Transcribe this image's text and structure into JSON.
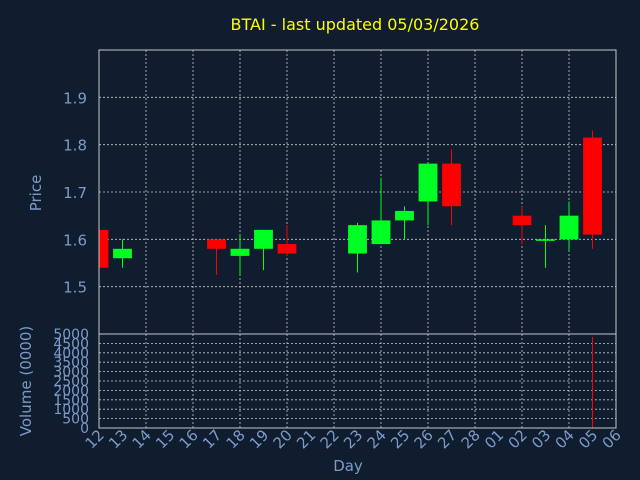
{
  "colors": {
    "background": "#0f1d2f",
    "title": "#ffff00",
    "axis_text": "#7b9bc9",
    "grid": "#c8c8c8",
    "frame": "#c8c8c8",
    "up": "#00ff22",
    "down": "#ff0000",
    "wick_up": "#00ff22",
    "wick_down": "#ff0000",
    "volume": "#ff0000"
  },
  "chart_data": {
    "type": "candlestick",
    "title": "BTAI - last updated 05/03/2026",
    "xlabel": "Day",
    "price_panel": {
      "ylabel": "Price",
      "ylim": [
        1.4,
        2.0
      ],
      "yticks": [
        "1.5",
        "1.6",
        "1.7",
        "1.8",
        "1.9"
      ],
      "ytick_values": [
        1.5,
        1.6,
        1.7,
        1.8,
        1.9
      ],
      "grid": true
    },
    "volume_panel": {
      "ylabel": "Volume (0000)",
      "ylim": [
        0,
        5000
      ],
      "yticks": [
        "0",
        "500",
        "1000",
        "1500",
        "2000",
        "2500",
        "3000",
        "3500",
        "4000",
        "4500",
        "5000"
      ],
      "ytick_values": [
        0,
        500,
        1000,
        1500,
        2000,
        2500,
        3000,
        3500,
        4000,
        4500,
        5000
      ],
      "grid": true
    },
    "x_ticks": [
      "12",
      "13",
      "14",
      "15",
      "16",
      "17",
      "18",
      "19",
      "20",
      "21",
      "22",
      "23",
      "24",
      "25",
      "26",
      "27",
      "28",
      "01",
      "02",
      "03",
      "04",
      "05",
      "06"
    ],
    "vertical_grid_at": [
      "12",
      "14",
      "16",
      "18",
      "20",
      "22",
      "24",
      "26",
      "28",
      "02",
      "04",
      "06"
    ],
    "candles": [
      {
        "day": "12",
        "open": 1.62,
        "high": 1.62,
        "low": 1.54,
        "close": 1.54
      },
      {
        "day": "13",
        "open": 1.56,
        "high": 1.6,
        "low": 1.54,
        "close": 1.58
      },
      {
        "day": "17",
        "open": 1.6,
        "high": 1.6,
        "low": 1.525,
        "close": 1.58
      },
      {
        "day": "18",
        "open": 1.565,
        "high": 1.61,
        "low": 1.525,
        "close": 1.58
      },
      {
        "day": "19",
        "open": 1.58,
        "high": 1.62,
        "low": 1.535,
        "close": 1.62
      },
      {
        "day": "20",
        "open": 1.59,
        "high": 1.63,
        "low": 1.565,
        "close": 1.57
      },
      {
        "day": "23",
        "open": 1.57,
        "high": 1.635,
        "low": 1.53,
        "close": 1.63
      },
      {
        "day": "24",
        "open": 1.59,
        "high": 1.73,
        "low": 1.59,
        "close": 1.64
      },
      {
        "day": "25",
        "open": 1.64,
        "high": 1.67,
        "low": 1.6,
        "close": 1.66
      },
      {
        "day": "26",
        "open": 1.68,
        "high": 1.76,
        "low": 1.63,
        "close": 1.76
      },
      {
        "day": "27",
        "open": 1.76,
        "high": 1.79,
        "low": 1.63,
        "close": 1.67
      },
      {
        "day": "02",
        "open": 1.65,
        "high": 1.67,
        "low": 1.59,
        "close": 1.63
      },
      {
        "day": "03",
        "open": 1.6,
        "high": 1.63,
        "low": 1.54,
        "close": 1.6
      },
      {
        "day": "04",
        "open": 1.6,
        "high": 1.68,
        "low": 1.575,
        "close": 1.65
      },
      {
        "day": "05",
        "open": 1.815,
        "high": 1.83,
        "low": 1.58,
        "close": 1.61
      }
    ],
    "volume": [
      {
        "day": "05",
        "value": 4850
      }
    ]
  }
}
